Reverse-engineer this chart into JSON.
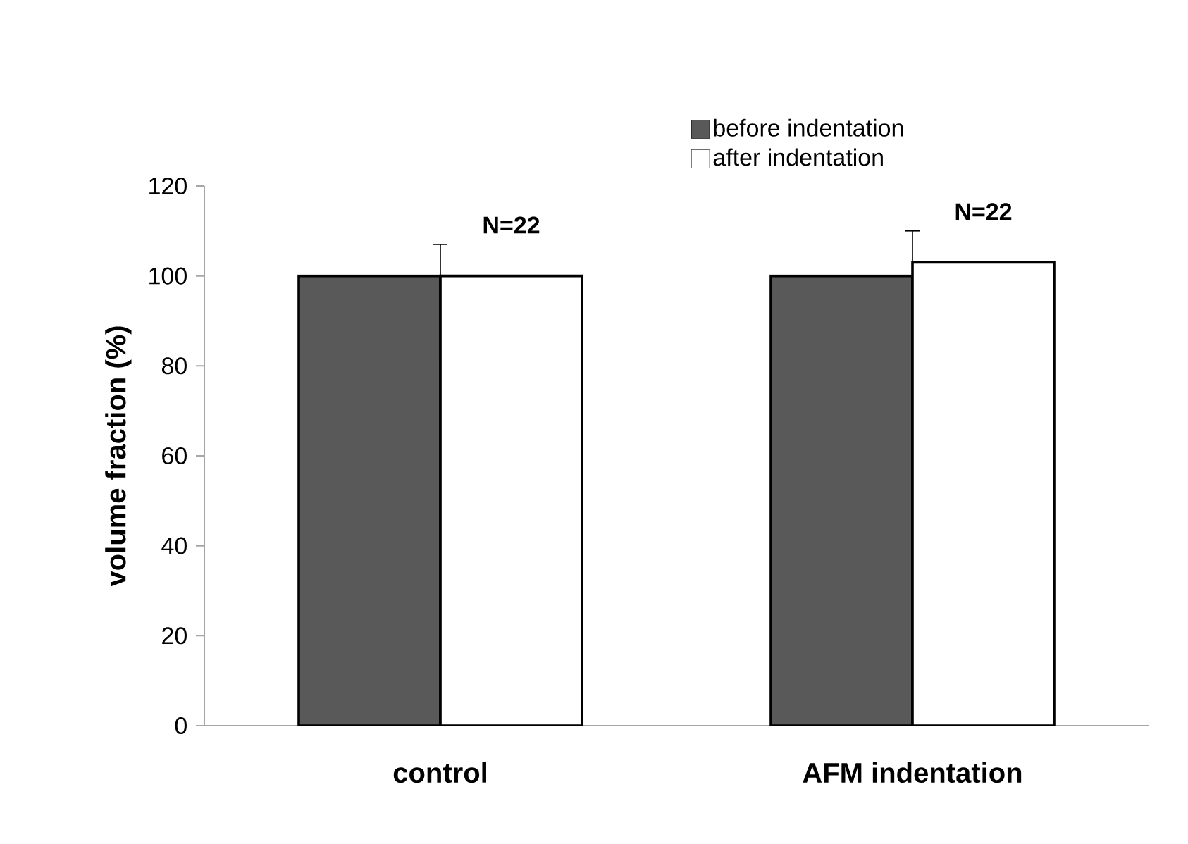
{
  "chart_data": {
    "type": "bar",
    "ylabel": "volume fraction (%)",
    "categories": [
      "control",
      "AFM indentation"
    ],
    "series": [
      {
        "name": "before indentation",
        "color": "#595959",
        "values": [
          100,
          100
        ]
      },
      {
        "name": "after indentation",
        "color": "#ffffff",
        "values": [
          100,
          103
        ],
        "errors": [
          7,
          7
        ]
      }
    ],
    "ylim": [
      0,
      120
    ],
    "yticks": [
      0,
      20,
      40,
      60,
      80,
      100,
      120
    ],
    "legend": "top",
    "grid": false,
    "annotations": [
      "N=22",
      "N=22"
    ]
  }
}
